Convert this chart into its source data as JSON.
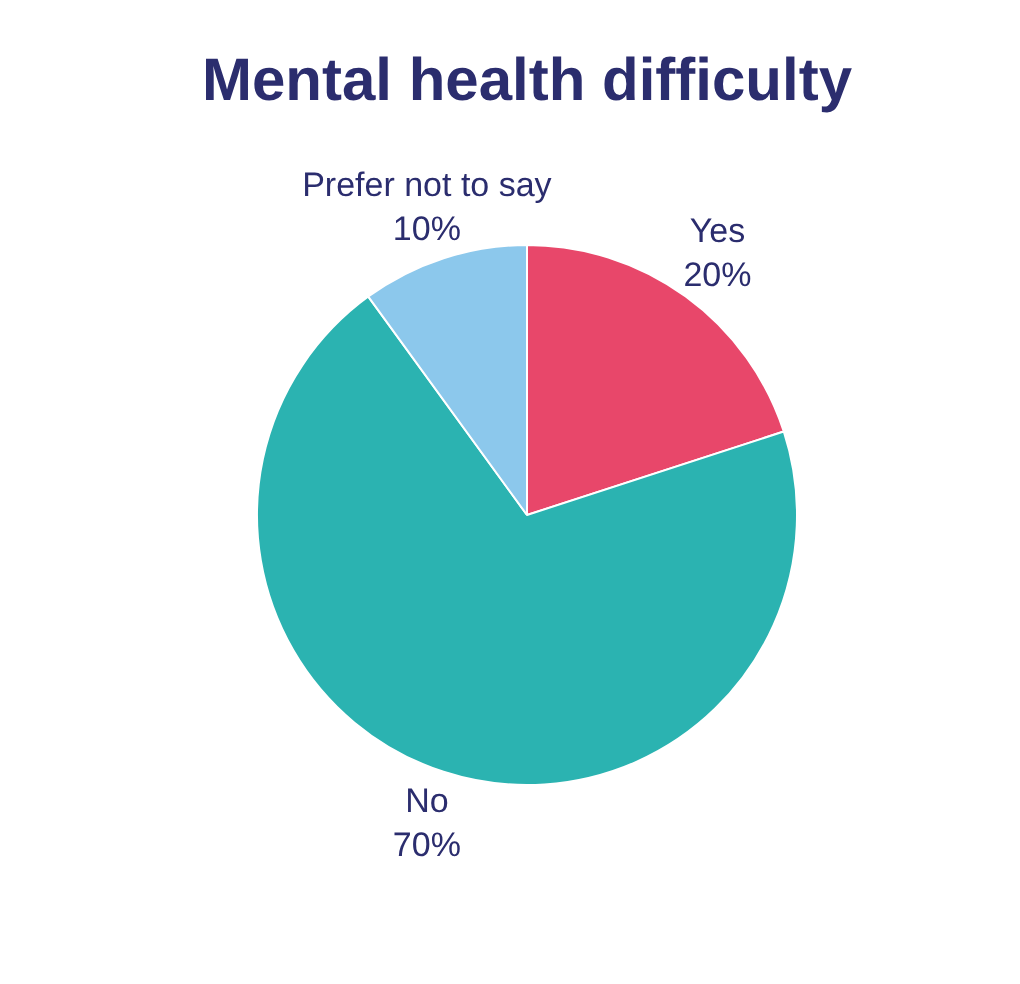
{
  "chart_data": {
    "type": "pie",
    "title": "Mental health difficulty",
    "categories": [
      "Yes",
      "No",
      "Prefer not to say"
    ],
    "values": [
      20,
      70,
      10
    ],
    "colors": [
      "#e8476a",
      "#2bb3b1",
      "#8cc8ec"
    ],
    "value_labels": [
      "20%",
      "70%",
      "10%"
    ]
  }
}
